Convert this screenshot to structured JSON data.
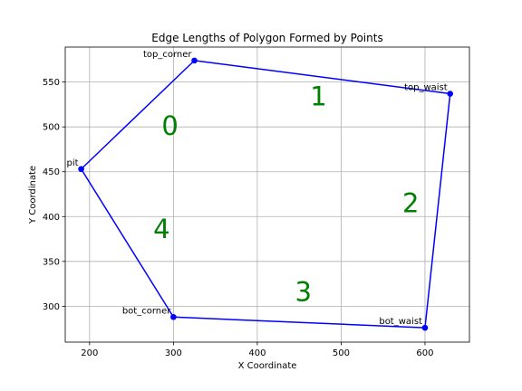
{
  "chart_data": {
    "type": "scatter",
    "title": "Edge Lengths of Polygon Formed by Points",
    "xlabel": "X Coordinate",
    "ylabel": "Y Coordinate",
    "xlim": [
      171,
      653
    ],
    "ylim": [
      260,
      589
    ],
    "xticks": [
      200,
      300,
      400,
      500,
      600
    ],
    "yticks": [
      300,
      350,
      400,
      450,
      500,
      550
    ],
    "grid": true,
    "line_color": "#0000ff",
    "point_color": "#0000ff",
    "edge_label_color": "#008000",
    "points": [
      {
        "label": "pit",
        "x": 190,
        "y": 453
      },
      {
        "label": "top_corner",
        "x": 325,
        "y": 574
      },
      {
        "label": "top_waist",
        "x": 630,
        "y": 537
      },
      {
        "label": "bot_waist",
        "x": 600,
        "y": 276
      },
      {
        "label": "bot_corner",
        "x": 300,
        "y": 288
      }
    ],
    "edge_labels": [
      {
        "text": "0",
        "x": 296,
        "y": 501
      },
      {
        "text": "1",
        "x": 473,
        "y": 534
      },
      {
        "text": "2",
        "x": 583,
        "y": 415
      },
      {
        "text": "3",
        "x": 455,
        "y": 316
      },
      {
        "text": "4",
        "x": 286,
        "y": 386
      }
    ]
  }
}
